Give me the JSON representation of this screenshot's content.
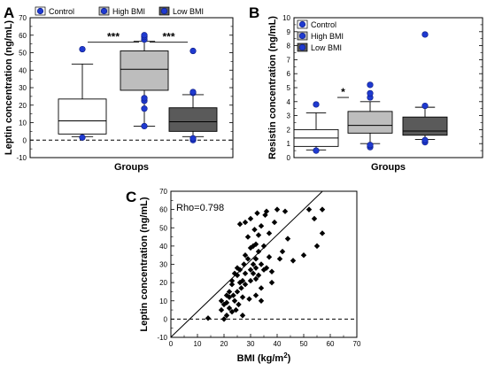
{
  "panels": {
    "a": {
      "letter": "A"
    },
    "b": {
      "letter": "B"
    },
    "c": {
      "letter": "C"
    }
  },
  "chart_data": [
    {
      "type": "box",
      "panel": "A",
      "xlabel": "Groups",
      "ylabel": "Leptin concentration (ng/mL)",
      "ylim": [
        -10,
        70
      ],
      "yticks": [
        -10,
        0,
        10,
        20,
        30,
        40,
        50,
        60,
        70
      ],
      "reference_line": 0,
      "legend": {
        "placement": "top",
        "entries": [
          "Control",
          "High BMI",
          "Low BMI"
        ]
      },
      "groups": [
        {
          "name": "Control",
          "fill": "#ffffff",
          "whisker_low": 2,
          "q1": 3.5,
          "median": 11,
          "q3": 23.5,
          "whisker_high": 43.5,
          "outliers": [
            1.5,
            52
          ]
        },
        {
          "name": "High BMI",
          "fill": "#bdbdbd",
          "whisker_low": 8,
          "q1": 28.5,
          "median": 40.5,
          "q3": 51,
          "whisker_high": 56.5,
          "outliers": [
            8,
            18,
            22.5,
            24,
            57.5,
            59,
            60
          ]
        },
        {
          "name": "Low BMI",
          "fill": "#5a5a5a",
          "whisker_low": 2,
          "q1": 5,
          "median": 10.5,
          "q3": 18.5,
          "whisker_high": 26,
          "outliers": [
            0,
            1,
            27,
            27.5,
            51
          ]
        }
      ],
      "significance": [
        {
          "from": 0,
          "to": 1,
          "y": 56,
          "label": "***"
        },
        {
          "from": 1,
          "to": 2,
          "y": 56,
          "label": "***"
        }
      ]
    },
    {
      "type": "box",
      "panel": "B",
      "xlabel": "Groups",
      "ylabel": "Resistin concentration (ng/mL)",
      "ylim": [
        0,
        10
      ],
      "yticks": [
        0,
        1,
        2,
        3,
        4,
        5,
        6,
        7,
        8,
        9,
        10
      ],
      "legend": {
        "placement": "top-left",
        "entries": [
          "Control",
          "High BMI",
          "Low BMI"
        ]
      },
      "groups": [
        {
          "name": "Control",
          "fill": "#ffffff",
          "whisker_low": 0.55,
          "q1": 0.8,
          "median": 1.4,
          "q3": 2.0,
          "whisker_high": 3.2,
          "outliers": [
            0.5,
            3.8
          ]
        },
        {
          "name": "High BMI",
          "fill": "#bdbdbd",
          "whisker_low": 1.0,
          "q1": 1.75,
          "median": 2.3,
          "q3": 3.3,
          "whisker_high": 4.0,
          "outliers": [
            0.75,
            0.9,
            4.3,
            4.6,
            5.2
          ]
        },
        {
          "name": "Low BMI",
          "fill": "#5a5a5a",
          "whisker_low": 1.3,
          "q1": 1.6,
          "median": 1.9,
          "q3": 2.9,
          "whisker_high": 3.6,
          "outliers": [
            1.1,
            1.25,
            3.7,
            8.8
          ]
        }
      ],
      "significance": [
        {
          "from": 0,
          "to": 1,
          "y": 4.3,
          "label": "*"
        }
      ]
    },
    {
      "type": "scatter",
      "panel": "C",
      "xlabel": "BMI (kg/m",
      "xlabel_sup": "2",
      "xlabel_end": ")",
      "ylabel": "Leptin concentration (ng/mL)",
      "xlim": [
        0,
        70
      ],
      "ylim": [
        -10,
        70
      ],
      "xticks": [
        0,
        10,
        20,
        30,
        40,
        50,
        60,
        70
      ],
      "yticks": [
        -10,
        0,
        10,
        20,
        30,
        40,
        50,
        60,
        70
      ],
      "reference_line": 0,
      "annotation": "Rho=0.798",
      "regression": {
        "slope": 1.4,
        "intercept": -9.9
      },
      "points": [
        [
          14,
          0.5
        ],
        [
          19,
          10
        ],
        [
          19,
          5
        ],
        [
          20,
          0
        ],
        [
          20,
          8
        ],
        [
          21,
          2
        ],
        [
          21,
          9
        ],
        [
          21,
          13
        ],
        [
          22,
          6
        ],
        [
          22,
          12
        ],
        [
          22,
          15
        ],
        [
          23,
          4
        ],
        [
          23,
          19
        ],
        [
          23,
          21
        ],
        [
          23.5,
          13
        ],
        [
          24,
          25
        ],
        [
          24,
          10
        ],
        [
          24.5,
          5
        ],
        [
          25,
          15
        ],
        [
          25,
          24
        ],
        [
          25,
          28
        ],
        [
          25.5,
          8
        ],
        [
          26,
          20
        ],
        [
          26,
          27
        ],
        [
          26,
          52
        ],
        [
          26.5,
          17
        ],
        [
          27,
          2
        ],
        [
          27,
          12
        ],
        [
          27,
          21
        ],
        [
          27.5,
          30
        ],
        [
          28,
          19
        ],
        [
          28,
          25
        ],
        [
          28,
          35
        ],
        [
          28,
          53
        ],
        [
          29,
          33
        ],
        [
          29,
          45
        ],
        [
          29.5,
          11
        ],
        [
          30,
          21
        ],
        [
          30,
          27
        ],
        [
          30,
          39
        ],
        [
          30,
          55
        ],
        [
          31,
          25
        ],
        [
          31,
          30
        ],
        [
          31,
          40
        ],
        [
          31.5,
          49
        ],
        [
          32,
          13
        ],
        [
          32,
          22
        ],
        [
          32,
          28
        ],
        [
          32,
          33
        ],
        [
          32,
          41
        ],
        [
          32.5,
          58
        ],
        [
          33,
          24
        ],
        [
          33,
          37
        ],
        [
          33,
          46
        ],
        [
          34,
          10
        ],
        [
          34,
          17
        ],
        [
          34,
          30
        ],
        [
          34,
          51
        ],
        [
          35,
          27
        ],
        [
          35,
          40
        ],
        [
          35.5,
          57
        ],
        [
          36,
          28
        ],
        [
          36,
          59
        ],
        [
          37,
          34
        ],
        [
          37,
          47
        ],
        [
          38,
          20
        ],
        [
          38,
          26
        ],
        [
          39,
          53
        ],
        [
          40,
          60
        ],
        [
          41,
          33
        ],
        [
          42,
          37
        ],
        [
          43,
          59
        ],
        [
          44,
          44
        ],
        [
          46,
          32
        ],
        [
          50,
          35
        ],
        [
          52,
          60
        ],
        [
          54,
          55
        ],
        [
          55,
          40
        ],
        [
          57,
          47
        ],
        [
          57,
          60
        ]
      ]
    }
  ]
}
